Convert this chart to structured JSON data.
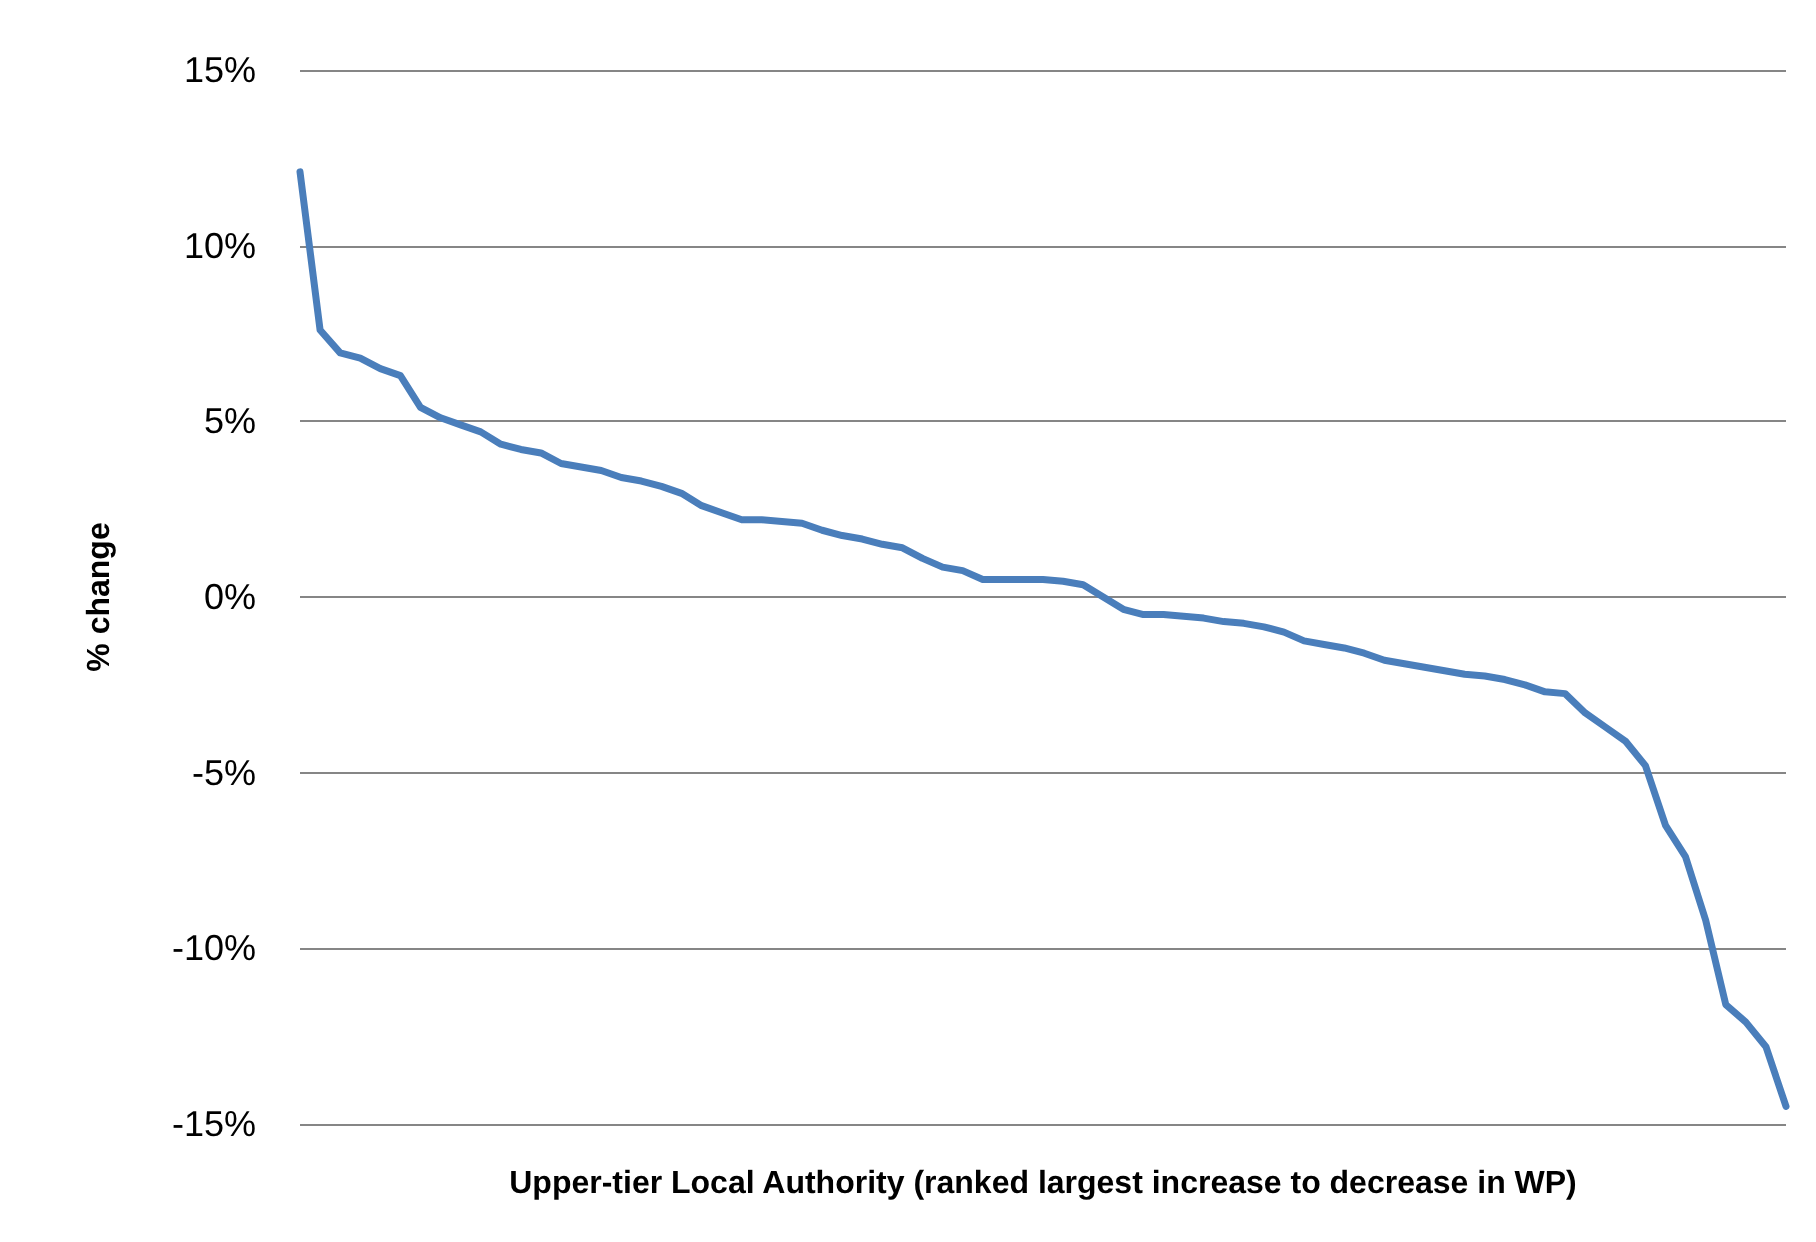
{
  "chart_data": {
    "type": "line",
    "xlabel": "Upper-tier Local Authority (ranked largest increase to decrease in WP)",
    "ylabel": "% change",
    "categories": [
      null,
      null,
      null,
      null,
      null,
      null,
      null,
      null,
      null,
      null,
      null,
      null,
      null,
      null,
      null,
      null,
      null,
      null,
      null,
      null,
      null,
      null,
      null,
      null,
      null,
      null,
      null,
      null,
      null,
      null,
      null,
      null,
      null,
      null,
      null,
      null,
      null,
      null,
      null,
      null,
      null,
      null,
      null,
      null,
      null,
      null,
      null,
      null,
      null,
      null,
      null,
      null,
      null,
      null,
      null,
      null,
      null,
      null,
      null,
      null,
      null,
      null,
      null,
      null,
      null,
      null,
      null,
      null,
      null,
      null,
      null,
      null,
      null,
      null,
      null
    ],
    "series": [
      {
        "color": "#4a7ebb",
        "values": [
          12.1,
          7.6,
          6.95,
          6.8,
          6.5,
          6.3,
          5.4,
          5.1,
          4.9,
          4.7,
          4.35,
          4.2,
          4.1,
          3.8,
          3.7,
          3.6,
          3.4,
          3.3,
          3.15,
          2.95,
          2.6,
          2.4,
          2.2,
          2.2,
          2.15,
          2.1,
          1.9,
          1.75,
          1.65,
          1.5,
          1.4,
          1.1,
          0.85,
          0.75,
          0.5,
          0.5,
          0.5,
          0.5,
          0.45,
          0.35,
          0,
          -0.35,
          -0.5,
          -0.5,
          -0.55,
          -0.6,
          -0.7,
          -0.75,
          -0.85,
          -1,
          -1.25,
          -1.35,
          -1.45,
          -1.6,
          -1.8,
          -1.9,
          -2,
          -2.1,
          -2.2,
          -2.25,
          -2.35,
          -2.5,
          -2.7,
          -2.75,
          -3.3,
          -3.7,
          -4.1,
          -4.8,
          -6.5,
          -7.4,
          -9.2,
          -11.6,
          -12.1,
          -12.8,
          -14.5
        ]
      }
    ],
    "ylim": [
      -15,
      15
    ],
    "yticks": [
      {
        "value": -15,
        "label": "-15%"
      },
      {
        "value": -10,
        "label": "-10%"
      },
      {
        "value": -5,
        "label": "-5%"
      },
      {
        "value": 0,
        "label": "0%"
      },
      {
        "value": 5,
        "label": "5%"
      },
      {
        "value": 10,
        "label": "10%"
      },
      {
        "value": 15,
        "label": "15%"
      }
    ],
    "grid": "y",
    "marker": "none",
    "line_style": "solid"
  }
}
